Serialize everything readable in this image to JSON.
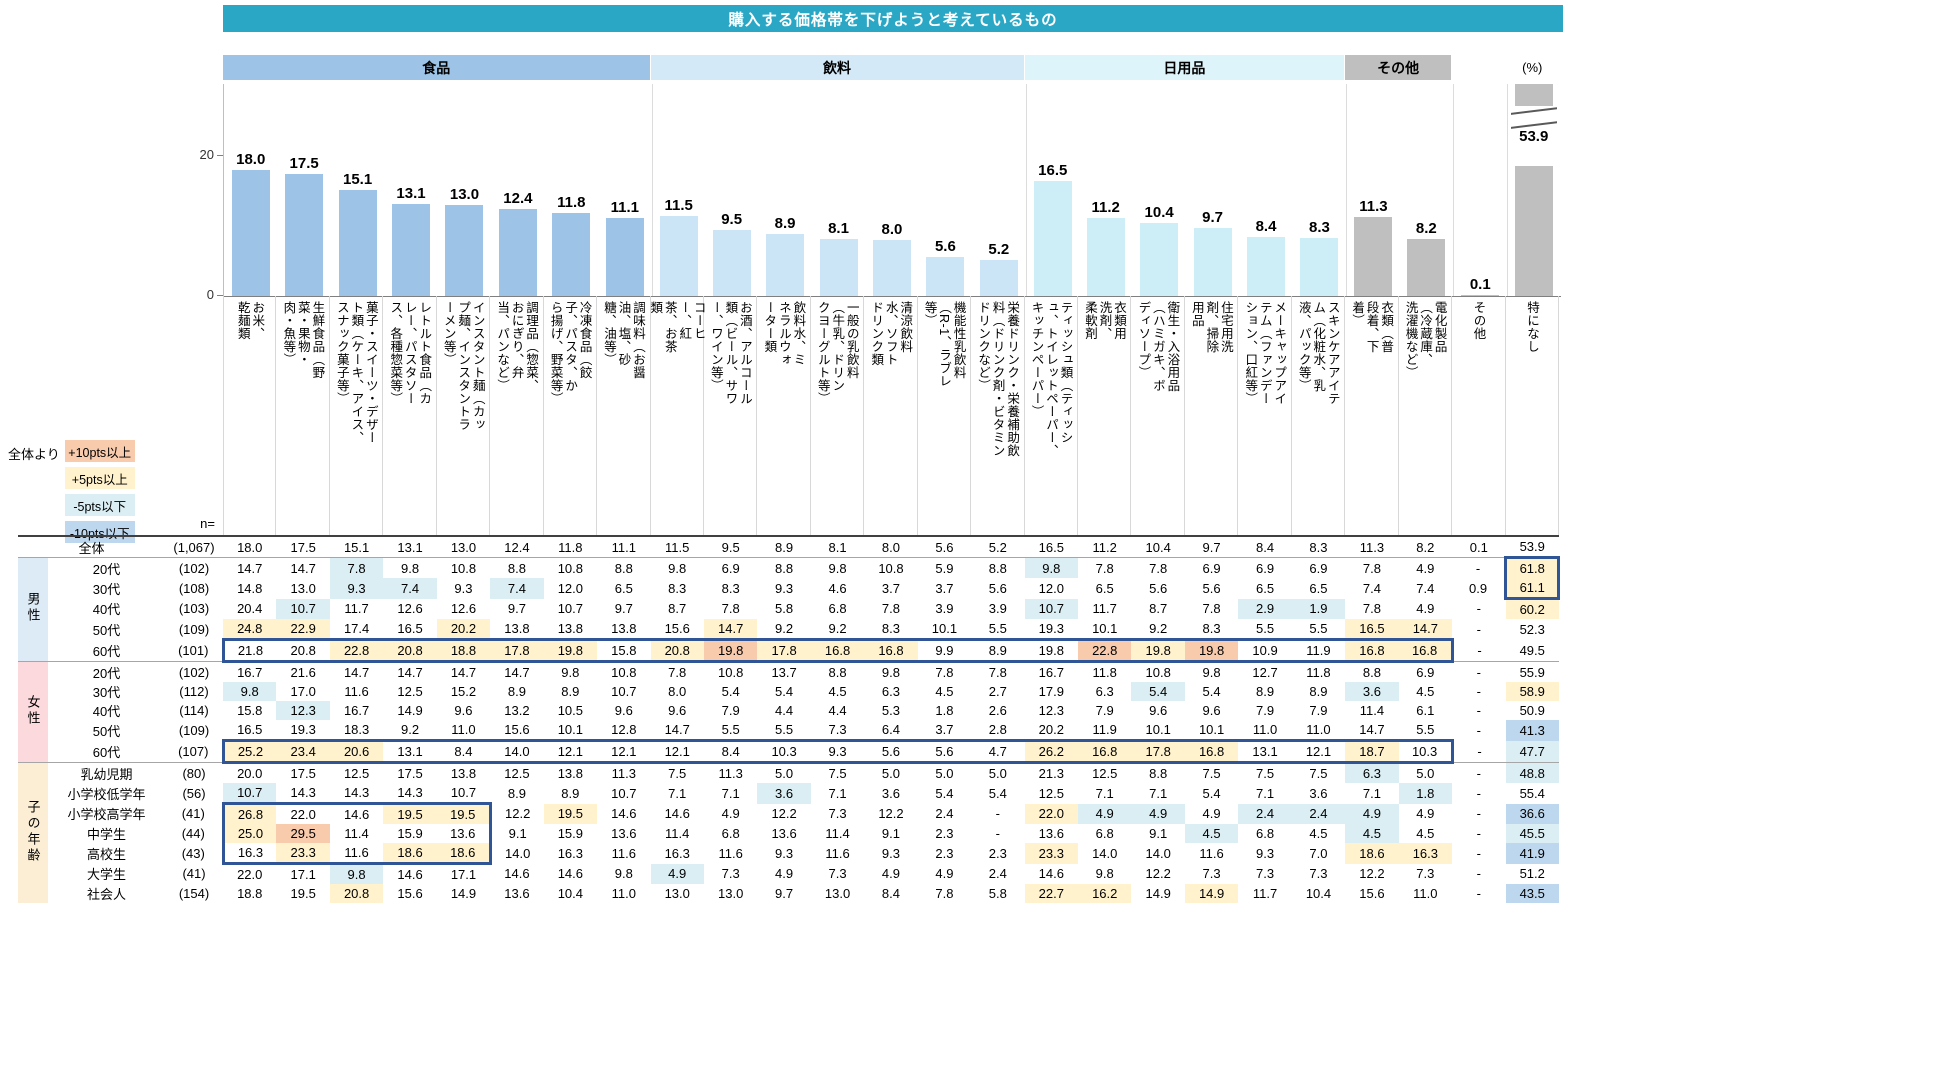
{
  "title": "購入する価格帯を下げようと考えているもの",
  "unit_label": "(%)",
  "axis": {
    "tick_top": "20",
    "tick_bottom": "0"
  },
  "legend": {
    "prefix": "全体より",
    "items": [
      {
        "key": "p10",
        "label": "+10pts以上",
        "color": "#F8CBAD"
      },
      {
        "key": "p5",
        "label": "+5pts以上",
        "color": "#FFF2CC"
      },
      {
        "key": "m5",
        "label": "-5pts以下",
        "color": "#DAEEF3"
      },
      {
        "key": "m10",
        "label": "-10pts以下",
        "color": "#BDD7EE"
      }
    ],
    "thresholds": {
      "p10": 10,
      "p5": 5,
      "m5": -5,
      "m10": -10
    }
  },
  "categories": [
    {
      "label": "食品",
      "span": 8,
      "header_color": "#9DC3E6",
      "bar_color": "#9DC3E6"
    },
    {
      "label": "飲料",
      "span": 7,
      "header_color": "#D4E9F8",
      "bar_color": "#CBE4F6"
    },
    {
      "label": "日用品",
      "span": 6,
      "header_color": "#DCF4FA",
      "bar_color": "#CDEEF6"
    },
    {
      "label": "その他",
      "span": 2,
      "header_color": "#BFBFBF",
      "bar_color": "#BFBFBF"
    }
  ],
  "col_cat": [
    0,
    0,
    0,
    0,
    0,
    0,
    0,
    0,
    1,
    1,
    1,
    1,
    1,
    1,
    1,
    2,
    2,
    2,
    2,
    2,
    2,
    3,
    3,
    3,
    3
  ],
  "chart_data": {
    "type": "bar",
    "title": "購入する価格帯を下げようと考えているもの",
    "ylabel": "(%)",
    "ylim": [
      0,
      30
    ],
    "y_ticks": [
      0,
      20
    ],
    "grid": false,
    "legend_position": "none",
    "axis_break": {
      "column": "特になし",
      "value": 53.9
    },
    "categories": [
      "お米、\n乾麺類",
      "生鮮食品（野菜・果物・肉・魚等）",
      "菓子・スイーツ・デザート類（ケーキ、アイス、スナック菓子等）",
      "レトルト食品（カレー、パスタソース、各種惣菜等）",
      "インスタント麺（カップ麺、インスタントラーメン等）",
      "調理品（惣菜、おにぎり、弁当、パンなど）",
      "冷凍食品（餃子、パスタ、から揚げ、野菜等）",
      "調味料（お醤油、塩、砂糖、油等）",
      "コーヒー、紅茶、お茶類",
      "お酒、アルコール類（ビール、サワー、ワイン等）",
      "飲料水、ミネラルウォーター類",
      "一般の乳飲料（牛乳、ドリンクヨーグルト等）",
      "清涼飲料水、ソフトドリンク類",
      "機能性乳飲料（R-1、ラブレ等）",
      "栄養ドリンク・栄養補助飲料（ドリンク剤・ビタミンドリンクなど）",
      "ティッシュ類（ティッシュ、トイレットペーパー、キッチンペーパー）",
      "衣類用洗剤、柔軟剤",
      "衛生・入浴用品（ハミガキ、ボディソープ）",
      "住宅用洗剤、掃除用品",
      "メーキャップアイテム（ファンデーション、口紅等）",
      "スキンケアアイテム（化粧水、乳液、パック等）",
      "衣類（普段着、下着）",
      "電化製品（冷蔵庫、洗濯機など）",
      "その他",
      "特になし"
    ],
    "values": [
      18.0,
      17.5,
      15.1,
      13.1,
      13.0,
      12.4,
      11.8,
      11.1,
      11.5,
      9.5,
      8.9,
      8.1,
      8.0,
      5.6,
      5.2,
      16.5,
      11.2,
      10.4,
      9.7,
      8.4,
      8.3,
      11.3,
      8.2,
      0.1,
      53.9
    ]
  },
  "table": {
    "n_header": "n=",
    "groups": [
      {
        "label": "",
        "color": "",
        "rows": [
          {
            "label": "全体",
            "n": "(1,067)",
            "values": [
              "18.0",
              "17.5",
              "15.1",
              "13.1",
              "13.0",
              "12.4",
              "11.8",
              "11.1",
              "11.5",
              "9.5",
              "8.9",
              "8.1",
              "8.0",
              "5.6",
              "5.2",
              "16.5",
              "11.2",
              "10.4",
              "9.7",
              "8.4",
              "8.3",
              "11.3",
              "8.2",
              "0.1",
              "53.9"
            ]
          }
        ]
      },
      {
        "label": "男性",
        "color": "#DDEBF7",
        "rows": [
          {
            "label": "20代",
            "n": "(102)",
            "values": [
              "14.7",
              "14.7",
              "7.8",
              "9.8",
              "10.8",
              "8.8",
              "10.8",
              "8.8",
              "9.8",
              "6.9",
              "8.8",
              "9.8",
              "10.8",
              "5.9",
              "8.8",
              "9.8",
              "7.8",
              "7.8",
              "6.9",
              "6.9",
              "6.9",
              "7.8",
              "4.9",
              "-",
              "61.8"
            ]
          },
          {
            "label": "30代",
            "n": "(108)",
            "values": [
              "14.8",
              "13.0",
              "9.3",
              "7.4",
              "9.3",
              "7.4",
              "12.0",
              "6.5",
              "8.3",
              "8.3",
              "9.3",
              "4.6",
              "3.7",
              "3.7",
              "5.6",
              "12.0",
              "6.5",
              "5.6",
              "5.6",
              "6.5",
              "6.5",
              "7.4",
              "7.4",
              "0.9",
              "61.1"
            ]
          },
          {
            "label": "40代",
            "n": "(103)",
            "values": [
              "20.4",
              "10.7",
              "11.7",
              "12.6",
              "12.6",
              "9.7",
              "10.7",
              "9.7",
              "8.7",
              "7.8",
              "5.8",
              "6.8",
              "7.8",
              "3.9",
              "3.9",
              "10.7",
              "11.7",
              "8.7",
              "7.8",
              "2.9",
              "1.9",
              "7.8",
              "4.9",
              "-",
              "60.2"
            ]
          },
          {
            "label": "50代",
            "n": "(109)",
            "values": [
              "24.8",
              "22.9",
              "17.4",
              "16.5",
              "20.2",
              "13.8",
              "13.8",
              "13.8",
              "15.6",
              "14.7",
              "9.2",
              "9.2",
              "8.3",
              "10.1",
              "5.5",
              "19.3",
              "10.1",
              "9.2",
              "8.3",
              "5.5",
              "5.5",
              "16.5",
              "14.7",
              "-",
              "52.3"
            ]
          },
          {
            "label": "60代",
            "n": "(101)",
            "values": [
              "21.8",
              "20.8",
              "22.8",
              "20.8",
              "18.8",
              "17.8",
              "19.8",
              "15.8",
              "20.8",
              "19.8",
              "17.8",
              "16.8",
              "16.8",
              "9.9",
              "8.9",
              "19.8",
              "22.8",
              "19.8",
              "19.8",
              "10.9",
              "11.9",
              "16.8",
              "16.8",
              "-",
              "49.5"
            ]
          }
        ]
      },
      {
        "label": "女性",
        "color": "#FBD9DC",
        "rows": [
          {
            "label": "20代",
            "n": "(102)",
            "values": [
              "16.7",
              "21.6",
              "14.7",
              "14.7",
              "14.7",
              "14.7",
              "9.8",
              "10.8",
              "7.8",
              "10.8",
              "13.7",
              "8.8",
              "9.8",
              "7.8",
              "7.8",
              "16.7",
              "11.8",
              "10.8",
              "9.8",
              "12.7",
              "11.8",
              "8.8",
              "6.9",
              "-",
              "55.9"
            ]
          },
          {
            "label": "30代",
            "n": "(112)",
            "values": [
              "9.8",
              "17.0",
              "11.6",
              "12.5",
              "15.2",
              "8.9",
              "8.9",
              "10.7",
              "8.0",
              "5.4",
              "5.4",
              "4.5",
              "6.3",
              "4.5",
              "2.7",
              "17.9",
              "6.3",
              "5.4",
              "5.4",
              "8.9",
              "8.9",
              "3.6",
              "4.5",
              "-",
              "58.9"
            ]
          },
          {
            "label": "40代",
            "n": "(114)",
            "values": [
              "15.8",
              "12.3",
              "16.7",
              "14.9",
              "9.6",
              "13.2",
              "10.5",
              "9.6",
              "9.6",
              "7.9",
              "4.4",
              "4.4",
              "5.3",
              "1.8",
              "2.6",
              "12.3",
              "7.9",
              "9.6",
              "9.6",
              "7.9",
              "7.9",
              "11.4",
              "6.1",
              "-",
              "50.9"
            ]
          },
          {
            "label": "50代",
            "n": "(109)",
            "values": [
              "16.5",
              "19.3",
              "18.3",
              "9.2",
              "11.0",
              "15.6",
              "10.1",
              "12.8",
              "14.7",
              "5.5",
              "5.5",
              "7.3",
              "6.4",
              "3.7",
              "2.8",
              "20.2",
              "11.9",
              "10.1",
              "10.1",
              "11.0",
              "11.0",
              "14.7",
              "5.5",
              "-",
              "41.3"
            ]
          },
          {
            "label": "60代",
            "n": "(107)",
            "values": [
              "25.2",
              "23.4",
              "20.6",
              "13.1",
              "8.4",
              "14.0",
              "12.1",
              "12.1",
              "12.1",
              "8.4",
              "10.3",
              "9.3",
              "5.6",
              "5.6",
              "4.7",
              "26.2",
              "16.8",
              "17.8",
              "16.8",
              "13.1",
              "12.1",
              "18.7",
              "10.3",
              "-",
              "47.7"
            ]
          }
        ]
      },
      {
        "label": "子の年齢",
        "color": "#FBEED5",
        "rows": [
          {
            "label": "乳幼児期",
            "n": "(80)",
            "values": [
              "20.0",
              "17.5",
              "12.5",
              "17.5",
              "13.8",
              "12.5",
              "13.8",
              "11.3",
              "7.5",
              "11.3",
              "5.0",
              "7.5",
              "5.0",
              "5.0",
              "5.0",
              "21.3",
              "12.5",
              "8.8",
              "7.5",
              "7.5",
              "7.5",
              "6.3",
              "5.0",
              "-",
              "48.8"
            ]
          },
          {
            "label": "小学校低学年",
            "n": "(56)",
            "values": [
              "10.7",
              "14.3",
              "14.3",
              "14.3",
              "10.7",
              "8.9",
              "8.9",
              "10.7",
              "7.1",
              "7.1",
              "3.6",
              "7.1",
              "3.6",
              "5.4",
              "5.4",
              "12.5",
              "7.1",
              "7.1",
              "5.4",
              "7.1",
              "3.6",
              "7.1",
              "1.8",
              "-",
              "55.4"
            ]
          },
          {
            "label": "小学校高学年",
            "n": "(41)",
            "values": [
              "26.8",
              "22.0",
              "14.6",
              "19.5",
              "19.5",
              "12.2",
              "19.5",
              "14.6",
              "14.6",
              "4.9",
              "12.2",
              "7.3",
              "12.2",
              "2.4",
              "-",
              "22.0",
              "4.9",
              "4.9",
              "4.9",
              "2.4",
              "2.4",
              "4.9",
              "4.9",
              "-",
              "36.6"
            ]
          },
          {
            "label": "中学生",
            "n": "(44)",
            "values": [
              "25.0",
              "29.5",
              "11.4",
              "15.9",
              "13.6",
              "9.1",
              "15.9",
              "13.6",
              "11.4",
              "6.8",
              "13.6",
              "11.4",
              "9.1",
              "2.3",
              "-",
              "13.6",
              "6.8",
              "9.1",
              "4.5",
              "6.8",
              "4.5",
              "4.5",
              "4.5",
              "-",
              "45.5"
            ]
          },
          {
            "label": "高校生",
            "n": "(43)",
            "values": [
              "16.3",
              "23.3",
              "11.6",
              "18.6",
              "18.6",
              "14.0",
              "16.3",
              "11.6",
              "16.3",
              "11.6",
              "9.3",
              "11.6",
              "9.3",
              "2.3",
              "2.3",
              "23.3",
              "14.0",
              "14.0",
              "11.6",
              "9.3",
              "7.0",
              "18.6",
              "16.3",
              "-",
              "41.9"
            ]
          },
          {
            "label": "大学生",
            "n": "(41)",
            "values": [
              "22.0",
              "17.1",
              "9.8",
              "14.6",
              "17.1",
              "14.6",
              "14.6",
              "9.8",
              "4.9",
              "7.3",
              "4.9",
              "7.3",
              "4.9",
              "4.9",
              "2.4",
              "14.6",
              "9.8",
              "12.2",
              "7.3",
              "7.3",
              "7.3",
              "12.2",
              "7.3",
              "-",
              "51.2"
            ]
          },
          {
            "label": "社会人",
            "n": "(154)",
            "values": [
              "18.8",
              "19.5",
              "20.8",
              "15.6",
              "14.9",
              "13.6",
              "10.4",
              "11.0",
              "13.0",
              "13.0",
              "9.7",
              "13.0",
              "8.4",
              "7.8",
              "5.8",
              "22.7",
              "16.2",
              "14.9",
              "14.9",
              "11.7",
              "10.4",
              "15.6",
              "11.0",
              "-",
              "43.5"
            ]
          }
        ]
      }
    ]
  },
  "emphasis_boxes": [
    {
      "row_start": 5,
      "row_end": 5,
      "col_start": 0,
      "col_end": 22
    },
    {
      "row_start": 10,
      "row_end": 10,
      "col_start": 0,
      "col_end": 22
    },
    {
      "row_start": 13,
      "row_end": 15,
      "col_start": 0,
      "col_end": 4
    },
    {
      "row_start": 1,
      "row_end": 2,
      "col_start": 24,
      "col_end": 24
    }
  ],
  "emphasis_color": "#2F5597"
}
